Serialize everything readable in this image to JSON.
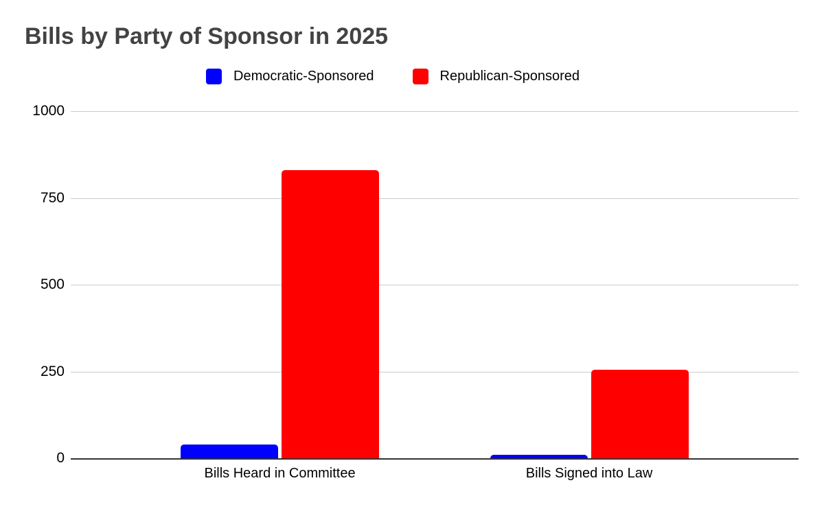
{
  "chart_data": {
    "type": "bar",
    "title": "Bills by Party of Sponsor in 2025",
    "categories": [
      "Bills Heard in Committee",
      "Bills Signed into Law"
    ],
    "series": [
      {
        "name": "Democratic-Sponsored",
        "color": "#0000ff",
        "values": [
          40,
          10
        ]
      },
      {
        "name": "Republican-Sponsored",
        "color": "#ff0000",
        "values": [
          830,
          255
        ]
      }
    ],
    "ylim": [
      0,
      1000
    ],
    "y_ticks": [
      0,
      250,
      500,
      750,
      1000
    ],
    "grid": true,
    "legend_position": "top",
    "xlabel": "",
    "ylabel": "",
    "colors": {
      "title": "#434343",
      "axis_text": "#000000",
      "gridline": "#cccccc",
      "baseline": "#333333",
      "background": "#ffffff",
      "democratic": "#0000ff",
      "republican": "#ff0000"
    }
  }
}
